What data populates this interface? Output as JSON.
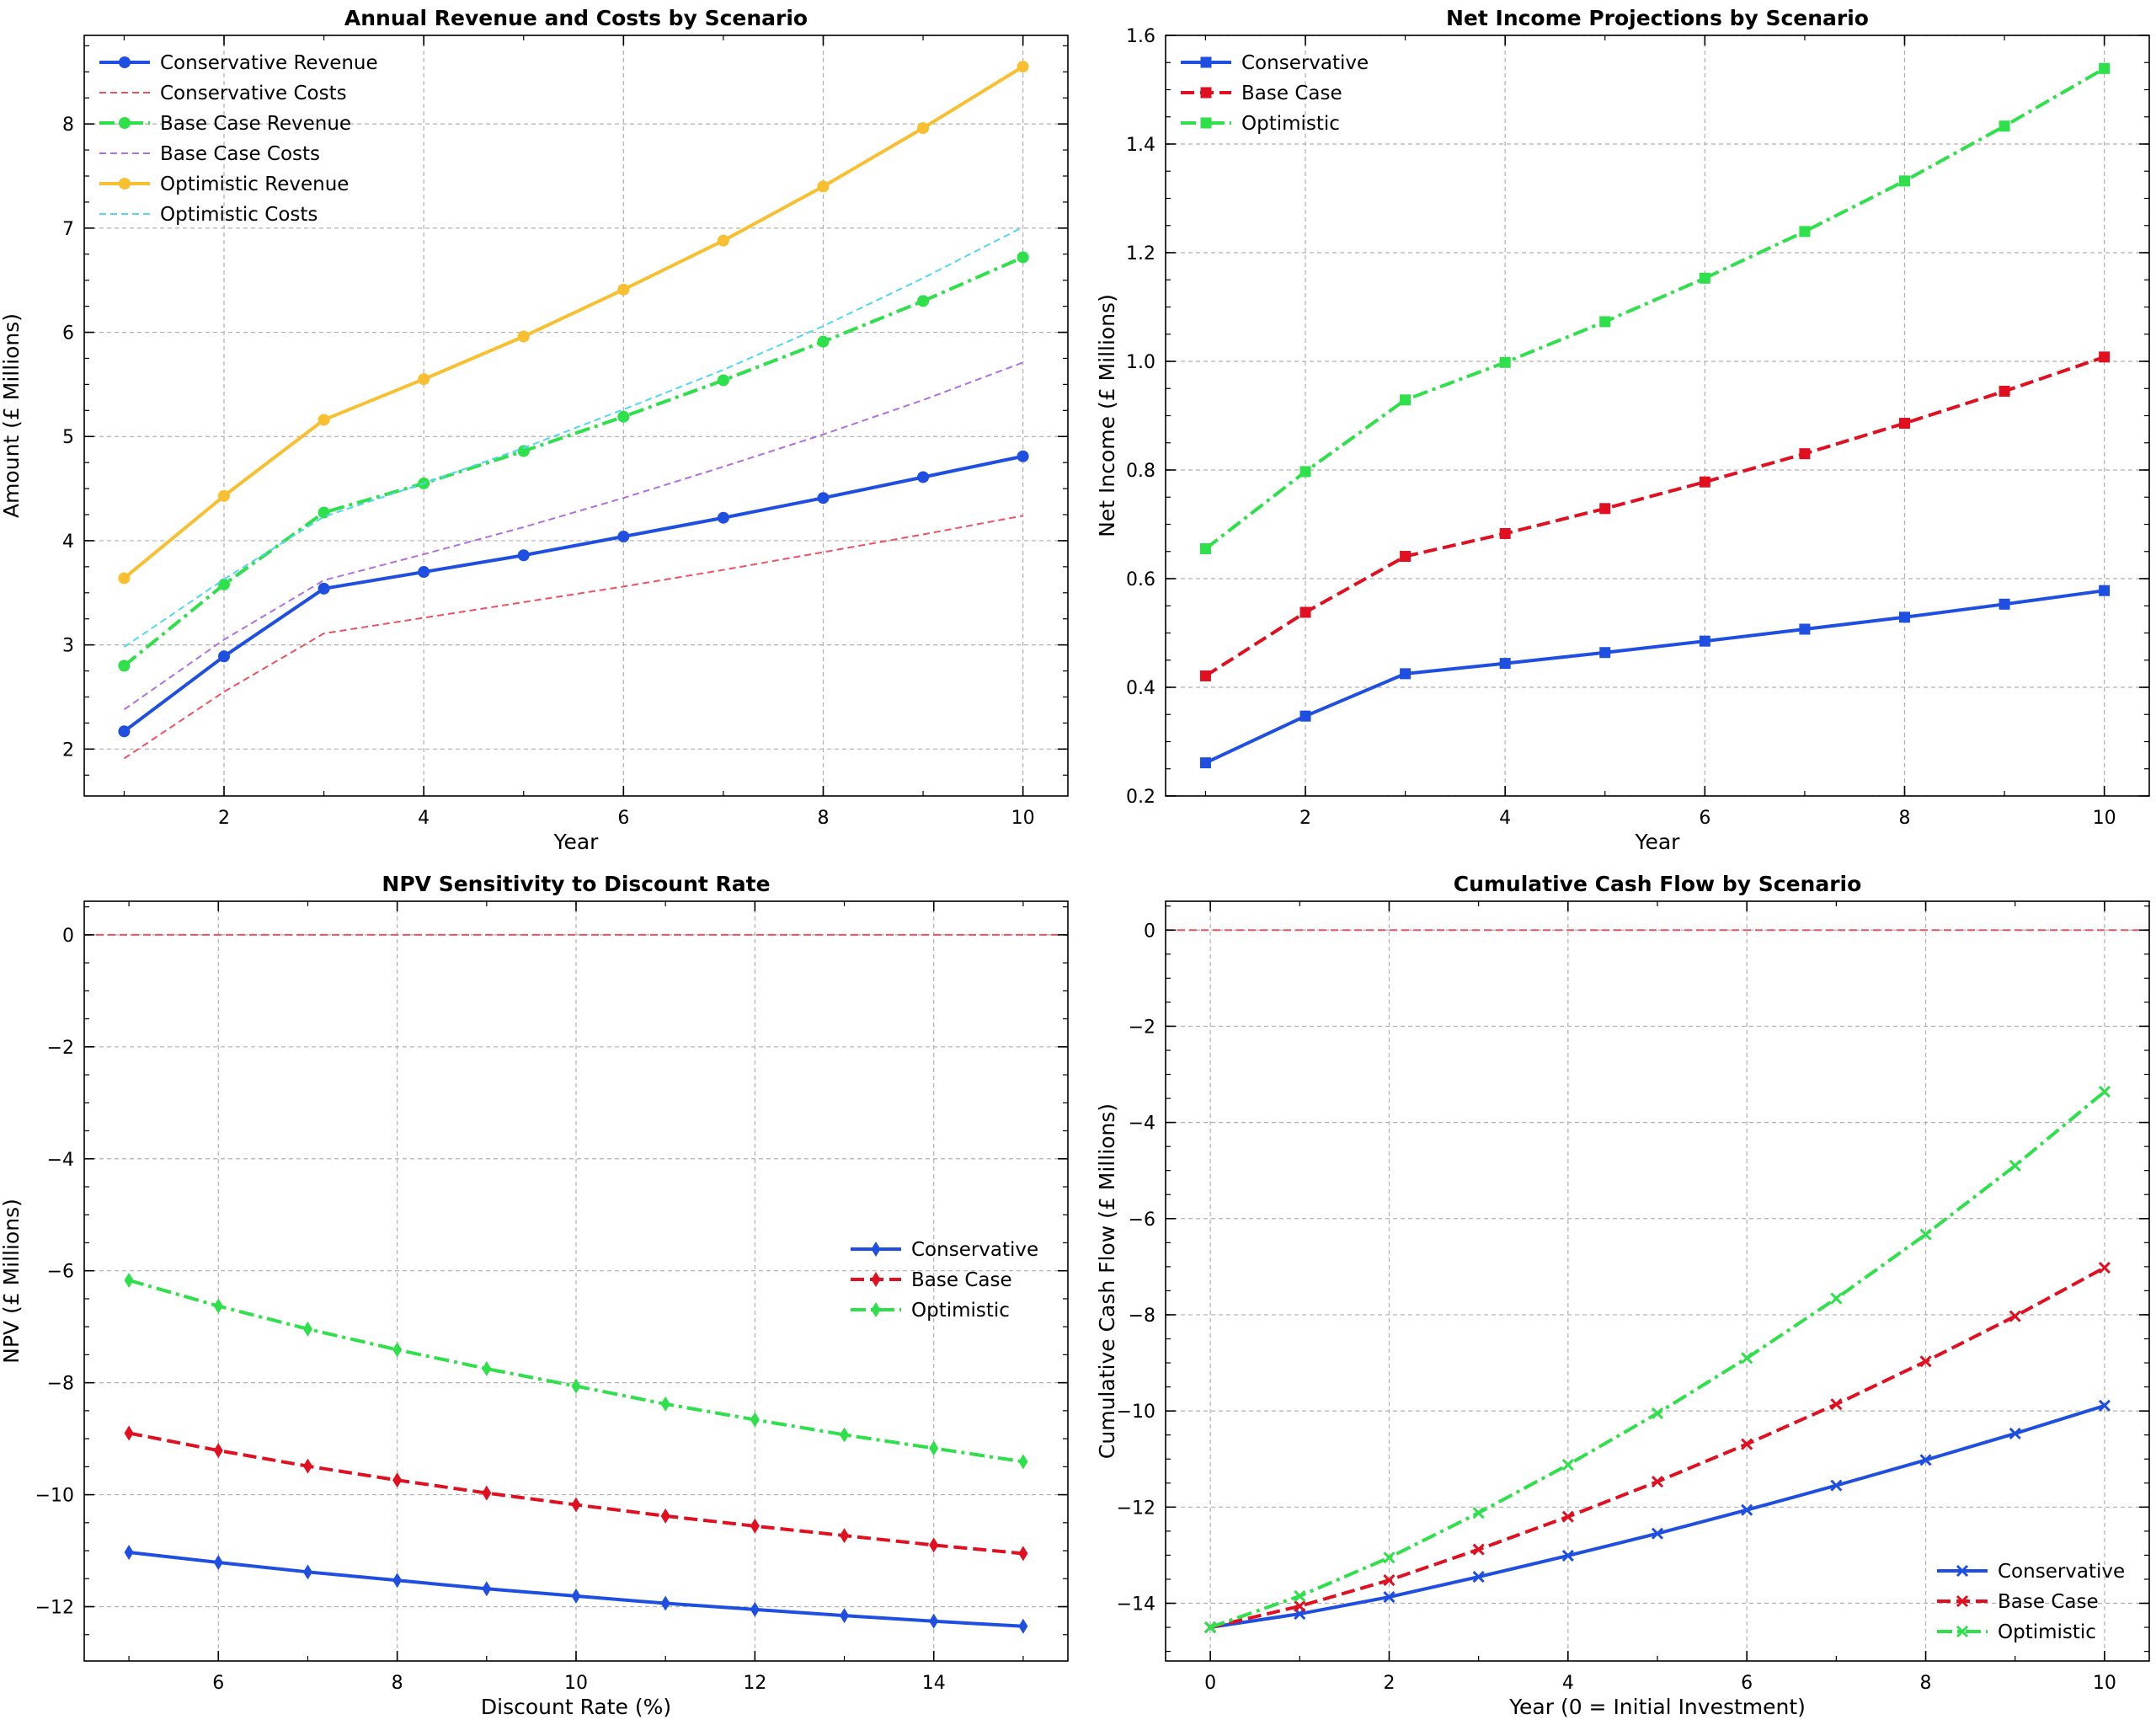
{
  "chart_data": [
    {
      "id": "revenue_costs",
      "type": "line",
      "title": "Annual Revenue and Costs by Scenario",
      "xlabel": "Year",
      "ylabel": "Amount (£ Millions)",
      "xlim": [
        0.6,
        10.45
      ],
      "ylim": [
        1.55,
        8.85
      ],
      "xticks": [
        2,
        4,
        6,
        8,
        10
      ],
      "yticks": [
        2,
        3,
        4,
        5,
        6,
        7,
        8
      ],
      "legend": "upper-left",
      "x": [
        1,
        2,
        3,
        4,
        5,
        6,
        7,
        8,
        9,
        10
      ],
      "series": [
        {
          "name": "Conservative Revenue",
          "color": "#1f4fe0",
          "style": "solid",
          "marker": "circle",
          "width": 4,
          "values": [
            2.17,
            2.89,
            3.54,
            3.7,
            3.86,
            4.04,
            4.22,
            4.41,
            4.61,
            4.81
          ]
        },
        {
          "name": "Conservative Costs",
          "color": "#f05060",
          "style": "dashed-thin",
          "marker": "none",
          "width": 2,
          "values": [
            1.91,
            2.55,
            3.11,
            3.26,
            3.41,
            3.56,
            3.72,
            3.89,
            4.06,
            4.24
          ]
        },
        {
          "name": "Base Case Revenue",
          "color": "#2ee04a",
          "style": "dashdot",
          "marker": "circle",
          "width": 4,
          "values": [
            2.8,
            3.58,
            4.27,
            4.55,
            4.86,
            5.19,
            5.54,
            5.91,
            6.3,
            6.72
          ]
        },
        {
          "name": "Base Case Costs",
          "color": "#b070e0",
          "style": "dashed-thin",
          "marker": "none",
          "width": 2,
          "values": [
            2.38,
            3.05,
            3.62,
            3.87,
            4.13,
            4.41,
            4.71,
            5.02,
            5.35,
            5.71
          ]
        },
        {
          "name": "Optimistic Revenue",
          "color": "#f8c030",
          "style": "solid",
          "marker": "circle",
          "width": 4,
          "values": [
            3.64,
            4.43,
            5.16,
            5.55,
            5.96,
            6.41,
            6.88,
            7.4,
            7.96,
            8.55
          ]
        },
        {
          "name": "Optimistic Costs",
          "color": "#50d8f0",
          "style": "dashed-thin",
          "marker": "none",
          "width": 2,
          "values": [
            2.98,
            3.63,
            4.23,
            4.55,
            4.89,
            5.26,
            5.64,
            6.06,
            6.52,
            7.01
          ]
        }
      ]
    },
    {
      "id": "net_income",
      "type": "line",
      "title": "Net Income Projections by Scenario",
      "xlabel": "Year",
      "ylabel": "Net Income (£ Millions)",
      "xlim": [
        0.6,
        10.45
      ],
      "ylim": [
        0.2,
        1.6
      ],
      "xticks": [
        2,
        4,
        6,
        8,
        10
      ],
      "yticks": [
        0.2,
        0.4,
        0.6,
        0.8,
        1.0,
        1.2,
        1.4,
        1.6
      ],
      "ytick_labels": [
        "0.2",
        "0.4",
        "0.6",
        "0.8",
        "1.0",
        "1.2",
        "1.4",
        "1.6"
      ],
      "legend": "upper-left",
      "x": [
        1,
        2,
        3,
        4,
        5,
        6,
        7,
        8,
        9,
        10
      ],
      "series": [
        {
          "name": "Conservative",
          "color": "#1f4fe0",
          "style": "solid",
          "marker": "square",
          "width": 4,
          "values": [
            0.261,
            0.347,
            0.425,
            0.444,
            0.464,
            0.485,
            0.507,
            0.529,
            0.553,
            0.578
          ]
        },
        {
          "name": "Base Case",
          "color": "#e01020",
          "style": "dashed",
          "marker": "square",
          "width": 4,
          "values": [
            0.421,
            0.538,
            0.641,
            0.683,
            0.729,
            0.778,
            0.83,
            0.886,
            0.945,
            1.008
          ]
        },
        {
          "name": "Optimistic",
          "color": "#2ee04a",
          "style": "dashdot",
          "marker": "square",
          "width": 4,
          "values": [
            0.655,
            0.797,
            0.929,
            0.998,
            1.073,
            1.153,
            1.239,
            1.332,
            1.433,
            1.539
          ]
        }
      ]
    },
    {
      "id": "npv_sensitivity",
      "type": "line",
      "title": "NPV Sensitivity to Discount Rate",
      "xlabel": "Discount Rate (%)",
      "ylabel": "NPV (£ Millions)",
      "xlim": [
        4.5,
        15.5
      ],
      "ylim": [
        -12.97,
        0.6
      ],
      "xticks": [
        6,
        8,
        10,
        12,
        14
      ],
      "yticks": [
        0,
        -2,
        -4,
        -6,
        -8,
        -10,
        -12
      ],
      "ytick_labels": [
        "0",
        "−2",
        "−4",
        "−6",
        "−8",
        "−10",
        "−12"
      ],
      "reference_line": {
        "y": 0,
        "color": "#f05060"
      },
      "legend": "center-right",
      "x": [
        5,
        6,
        7,
        8,
        9,
        10,
        11,
        12,
        13,
        14,
        15
      ],
      "series": [
        {
          "name": "Conservative",
          "color": "#1f4fe0",
          "style": "solid",
          "marker": "diamond",
          "width": 4,
          "values": [
            -11.03,
            -11.21,
            -11.38,
            -11.53,
            -11.68,
            -11.81,
            -11.94,
            -12.05,
            -12.16,
            -12.26,
            -12.35
          ]
        },
        {
          "name": "Base Case",
          "color": "#e01020",
          "style": "dashed",
          "marker": "diamond",
          "width": 4,
          "values": [
            -8.9,
            -9.21,
            -9.49,
            -9.74,
            -9.97,
            -10.18,
            -10.38,
            -10.56,
            -10.73,
            -10.9,
            -11.05
          ]
        },
        {
          "name": "Optimistic",
          "color": "#2ee04a",
          "style": "dashdot",
          "marker": "diamond",
          "width": 4,
          "values": [
            -6.17,
            -6.63,
            -7.04,
            -7.41,
            -7.75,
            -8.06,
            -8.38,
            -8.66,
            -8.93,
            -9.17,
            -9.41
          ]
        }
      ]
    },
    {
      "id": "cumulative_cash_flow",
      "type": "line",
      "title": "Cumulative Cash Flow by Scenario",
      "xlabel": "Year (0 = Initial Investment)",
      "ylabel": "Cumulative Cash Flow (£ Millions)",
      "xlim": [
        -0.5,
        10.5
      ],
      "ylim": [
        -15.2,
        0.6
      ],
      "xticks": [
        0,
        2,
        4,
        6,
        8,
        10
      ],
      "yticks": [
        0,
        -2,
        -4,
        -6,
        -8,
        -10,
        -12,
        -14
      ],
      "ytick_labels": [
        "0",
        "−2",
        "−4",
        "−6",
        "−8",
        "−10",
        "−12",
        "−14"
      ],
      "reference_line": {
        "y": 0,
        "color": "#f05060"
      },
      "legend": "lower-right",
      "x": [
        0,
        1,
        2,
        3,
        4,
        5,
        6,
        7,
        8,
        9,
        10
      ],
      "series": [
        {
          "name": "Conservative",
          "color": "#1f4fe0",
          "style": "solid",
          "marker": "x",
          "width": 4,
          "values": [
            -14.5,
            -14.22,
            -13.87,
            -13.45,
            -13.01,
            -12.55,
            -12.06,
            -11.55,
            -11.02,
            -10.47,
            -9.89
          ]
        },
        {
          "name": "Base Case",
          "color": "#e01020",
          "style": "dashed",
          "marker": "x",
          "width": 4,
          "values": [
            -14.5,
            -14.06,
            -13.52,
            -12.88,
            -12.2,
            -11.47,
            -10.69,
            -9.86,
            -8.97,
            -8.03,
            -7.02
          ]
        },
        {
          "name": "Optimistic",
          "color": "#2ee04a",
          "style": "dashdot",
          "marker": "x",
          "width": 4,
          "values": [
            -14.5,
            -13.85,
            -13.05,
            -12.12,
            -11.12,
            -10.05,
            -8.9,
            -7.66,
            -6.33,
            -4.9,
            -3.36
          ]
        }
      ]
    }
  ]
}
